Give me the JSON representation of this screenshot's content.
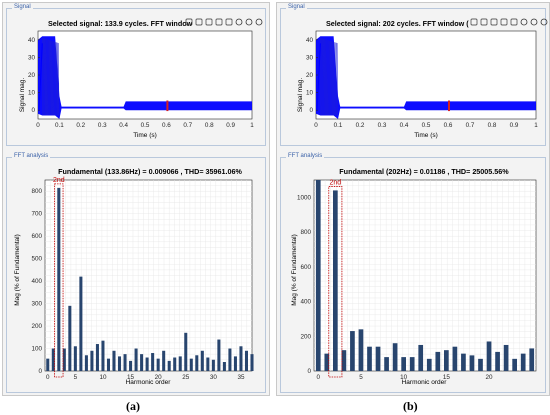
{
  "panels": [
    {
      "caption": "(a)",
      "signal": {
        "group_label": "Signal",
        "title": "Selected signal: 133.9 cycles. FFT window",
        "ylabel": "Signal mag.",
        "xlabel": "Time (s)",
        "xticks": [
          "0",
          "0.1",
          "0.2",
          "0.3",
          "0.4",
          "0.5",
          "0.6",
          "0.7",
          "0.8",
          "0.9",
          "1"
        ],
        "yticks": [
          "0",
          "10",
          "20",
          "30",
          "40"
        ]
      },
      "fft": {
        "group_label": "FFT analysis",
        "title": "Fundamental (133.86Hz) = 0.009066 , THD= 35961.06%",
        "ylabel": "Mag (% of Fundamental)",
        "xlabel": "Harmonic order",
        "xticks": [
          "0",
          "5",
          "10",
          "15",
          "20",
          "25",
          "30",
          "35"
        ],
        "yticks": [
          "0",
          "100",
          "200",
          "300",
          "400",
          "500",
          "600",
          "700",
          "800"
        ],
        "annotation": "2nd"
      }
    },
    {
      "caption": "(b)",
      "signal": {
        "group_label": "Signal",
        "title": "Selected signal: 202 cycles. FFT window (",
        "ylabel": "Signal mag.",
        "xlabel": "Time (s)",
        "xticks": [
          "0",
          "0.1",
          "0.2",
          "0.3",
          "0.4",
          "0.5",
          "0.6",
          "0.7",
          "0.8",
          "0.9",
          "1"
        ],
        "yticks": [
          "0",
          "10",
          "20",
          "30",
          "40"
        ]
      },
      "fft": {
        "group_label": "FFT analysis",
        "title": "Fundamental (202Hz) = 0.01186 , THD= 25005.56%",
        "ylabel": "Mag (% of Fundamental)",
        "xlabel": "Harmonic order",
        "xticks": [
          "0",
          "5",
          "10",
          "15",
          "20"
        ],
        "yticks": [
          "0",
          "200",
          "400",
          "600",
          "800",
          "1000"
        ],
        "annotation": "2nd"
      }
    }
  ],
  "chart_data": [
    {
      "type": "line",
      "title": "Selected signal: 133.9 cycles. FFT window",
      "xlabel": "Time (s)",
      "ylabel": "Signal mag.",
      "xlim": [
        0,
        1
      ],
      "ylim": [
        -5,
        45
      ],
      "x": [
        0,
        0.02,
        0.08,
        0.1,
        0.11,
        0.4,
        0.41,
        0.6,
        1.0
      ],
      "y_upper": [
        40,
        42,
        42,
        8,
        2,
        2,
        5,
        5,
        5
      ],
      "y_lower": [
        -2,
        -3,
        -3,
        -5,
        1,
        1,
        0,
        0,
        0
      ],
      "fft_window": [
        0.6,
        0.607
      ],
      "color": "#0000ff"
    },
    {
      "type": "line",
      "title": "Selected signal: 202 cycles. FFT window (",
      "xlabel": "Time (s)",
      "ylabel": "Signal mag.",
      "xlim": [
        0,
        1
      ],
      "ylim": [
        -5,
        45
      ],
      "x": [
        0,
        0.02,
        0.08,
        0.1,
        0.11,
        0.4,
        0.41,
        0.6,
        1.0
      ],
      "y_upper": [
        40,
        42,
        42,
        8,
        2,
        2,
        5,
        5,
        5
      ],
      "y_lower": [
        -2,
        -3,
        -3,
        -5,
        1,
        1,
        0,
        0,
        0
      ],
      "fft_window": [
        0.6,
        0.605
      ],
      "color": "#0000ff"
    },
    {
      "type": "bar",
      "title": "Fundamental (133.86Hz) = 0.009066 , THD= 35961.06%",
      "xlabel": "Harmonic order",
      "ylabel": "Mag (% of Fundamental)",
      "xlim": [
        -0.5,
        37
      ],
      "ylim": [
        0,
        850
      ],
      "categories": [
        0,
        1,
        2,
        3,
        4,
        5,
        6,
        7,
        8,
        9,
        10,
        11,
        12,
        13,
        14,
        15,
        16,
        17,
        18,
        19,
        20,
        21,
        22,
        23,
        24,
        25,
        26,
        27,
        28,
        29,
        30,
        31,
        32,
        33,
        34,
        35,
        36,
        37
      ],
      "values": [
        55,
        100,
        815,
        100,
        290,
        110,
        420,
        70,
        90,
        120,
        135,
        55,
        90,
        65,
        75,
        45,
        100,
        75,
        60,
        80,
        55,
        90,
        45,
        60,
        65,
        170,
        55,
        70,
        90,
        60,
        50,
        140,
        40,
        100,
        65,
        110,
        90,
        75
      ],
      "highlight": {
        "harmonic": 2,
        "label": "2nd"
      },
      "color": "#28456e"
    },
    {
      "type": "bar",
      "title": "Fundamental (202Hz) = 0.01186 , THD= 25005.56%",
      "xlabel": "Harmonic order",
      "ylabel": "Mag (% of Fundamental)",
      "xlim": [
        -0.5,
        25.5
      ],
      "ylim": [
        0,
        1100
      ],
      "categories": [
        0,
        1,
        2,
        3,
        4,
        5,
        6,
        7,
        8,
        9,
        10,
        11,
        12,
        13,
        14,
        15,
        16,
        17,
        18,
        19,
        20,
        21,
        22,
        23,
        24,
        25
      ],
      "values": [
        1100,
        100,
        1040,
        120,
        230,
        240,
        140,
        140,
        80,
        160,
        80,
        80,
        150,
        70,
        110,
        120,
        140,
        100,
        90,
        70,
        170,
        110,
        150,
        70,
        100,
        130
      ],
      "highlight": {
        "harmonic": 2,
        "label": "2nd"
      },
      "color": "#28456e"
    }
  ]
}
